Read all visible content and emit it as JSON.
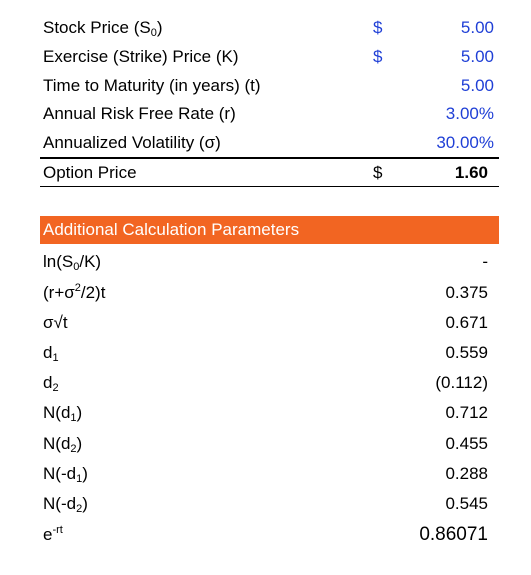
{
  "inputs": {
    "stock_price": {
      "label_main": "Stock Price (S",
      "label_sub": "0",
      "label_end": ")",
      "currency": "$",
      "value": "5.00"
    },
    "exercise_price": {
      "label": "Exercise (Strike) Price (K)",
      "currency": "$",
      "value": "5.00"
    },
    "time_to_maturity": {
      "label": "Time to Maturity (in years) (t)",
      "value": "5.00"
    },
    "risk_free_rate": {
      "label": "Annual Risk Free Rate (r)",
      "value": "3.00%"
    },
    "volatility": {
      "label": "Annualized Volatility (σ)",
      "value": "30.00%"
    }
  },
  "output": {
    "label": "Option Price",
    "currency": "$",
    "value": "1.60"
  },
  "section_header": "Additional Calculation Parameters",
  "params": [
    {
      "pre": "ln(S",
      "sub": "0",
      "post": "/K)",
      "value": "-"
    },
    {
      "pre": "(r+σ",
      "sup": "2",
      "post": "/2)t",
      "value": "0.375"
    },
    {
      "pre": "σ√t",
      "value": "0.671"
    },
    {
      "pre": "d",
      "sub": "1",
      "post": "",
      "value": "0.559"
    },
    {
      "pre": "d",
      "sub": "2",
      "post": "",
      "value": "(0.112)"
    },
    {
      "pre": "N(d",
      "sub": "1",
      "post": ")",
      "value": "0.712"
    },
    {
      "pre": "N(d",
      "sub": "2",
      "post": ")",
      "value": "0.455"
    },
    {
      "pre": "N(-d",
      "sub": "1",
      "post": ")",
      "value": "0.288"
    },
    {
      "pre": "N(-d",
      "sub": "2",
      "post": ")",
      "value": "0.545"
    },
    {
      "pre": "e",
      "sup": "-rt",
      "post": "",
      "value": "0.86071"
    }
  ],
  "colors": {
    "input_blue": "#1f3fd6",
    "header_orange": "#f26522"
  }
}
